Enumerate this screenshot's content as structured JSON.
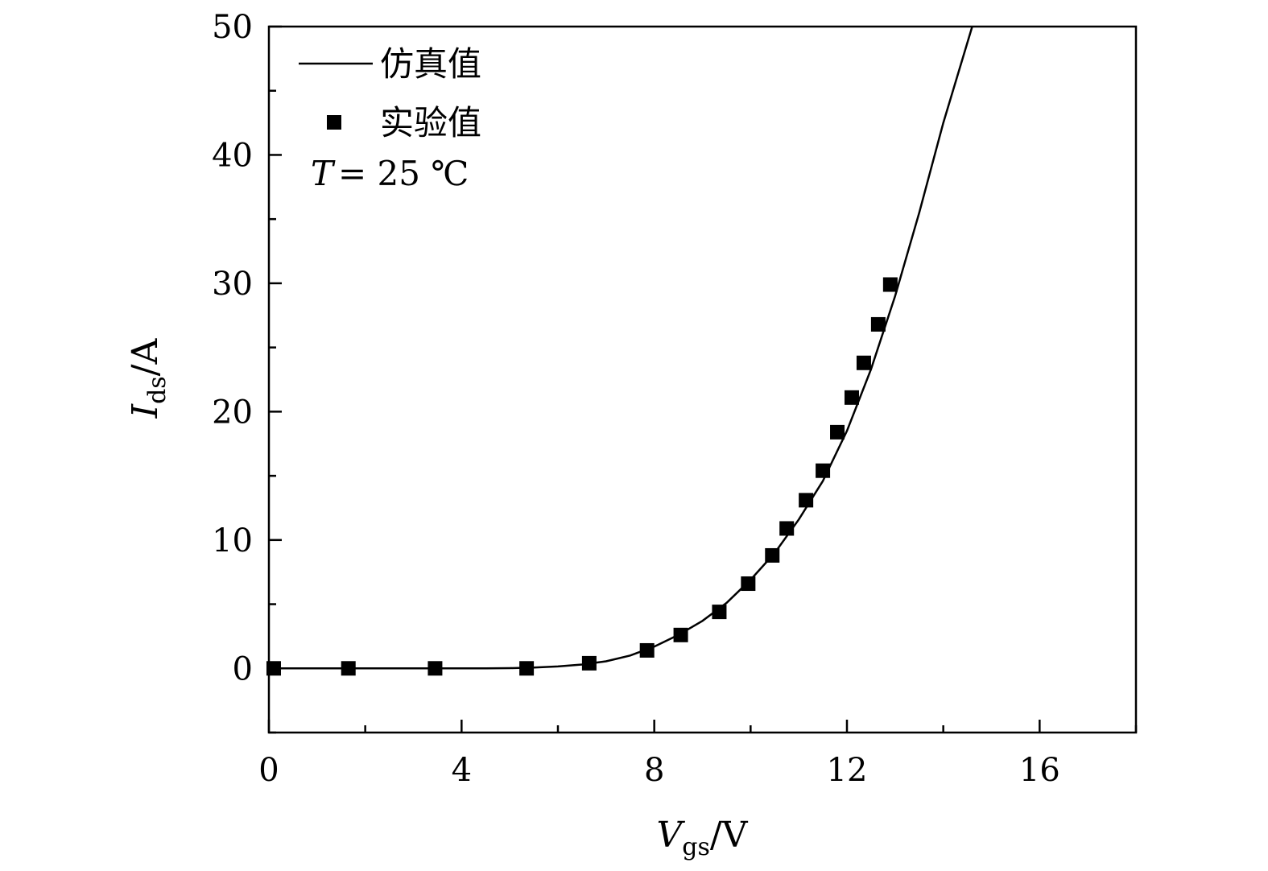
{
  "chart_data": {
    "type": "scatter",
    "title": "",
    "xlabel": {
      "main": "V",
      "sub": "gs",
      "unit": "/V"
    },
    "ylabel": {
      "main": "I",
      "sub": "ds",
      "unit": "/A"
    },
    "xlim": [
      0,
      18
    ],
    "ylim": [
      -5,
      50
    ],
    "x_ticks": [
      0,
      4,
      8,
      12,
      16
    ],
    "y_ticks": [
      0,
      10,
      20,
      30,
      40,
      50
    ],
    "x_tick_labels": [
      "0",
      "4",
      "8",
      "12",
      "16"
    ],
    "y_tick_labels": [
      "0",
      "10",
      "20",
      "30",
      "40",
      "50"
    ],
    "grid": false,
    "legend_position": "top-left",
    "series": [
      {
        "name": "仿真值",
        "kind": "line",
        "x": [
          0,
          1,
          2,
          3,
          4,
          4.5,
          5,
          5.5,
          6,
          6.5,
          7,
          7.5,
          8,
          8.5,
          9,
          9.5,
          10,
          10.5,
          11,
          11.5,
          12,
          12.5,
          13,
          13.5,
          14,
          14.6
        ],
        "y": [
          0,
          0,
          0,
          0,
          0,
          0,
          0.02,
          0.06,
          0.15,
          0.3,
          0.55,
          1.0,
          1.7,
          2.6,
          3.7,
          5.1,
          6.9,
          9.0,
          11.6,
          14.6,
          18.5,
          23.3,
          29.0,
          35.5,
          42.5,
          50
        ]
      },
      {
        "name": "实验值",
        "kind": "scatter",
        "x": [
          0.1,
          1.65,
          3.45,
          5.35,
          6.65,
          7.85,
          8.55,
          9.35,
          9.95,
          10.45,
          10.75,
          11.15,
          11.5,
          11.8,
          12.1,
          12.35,
          12.65,
          12.9
        ],
        "y": [
          0,
          0,
          0,
          0,
          0.4,
          1.4,
          2.6,
          4.4,
          6.6,
          8.8,
          10.9,
          13.1,
          15.4,
          18.4,
          21.1,
          23.8,
          26.8,
          29.9
        ]
      }
    ],
    "annotation": {
      "symbol": "T",
      "text": "= 25 ℃"
    }
  }
}
